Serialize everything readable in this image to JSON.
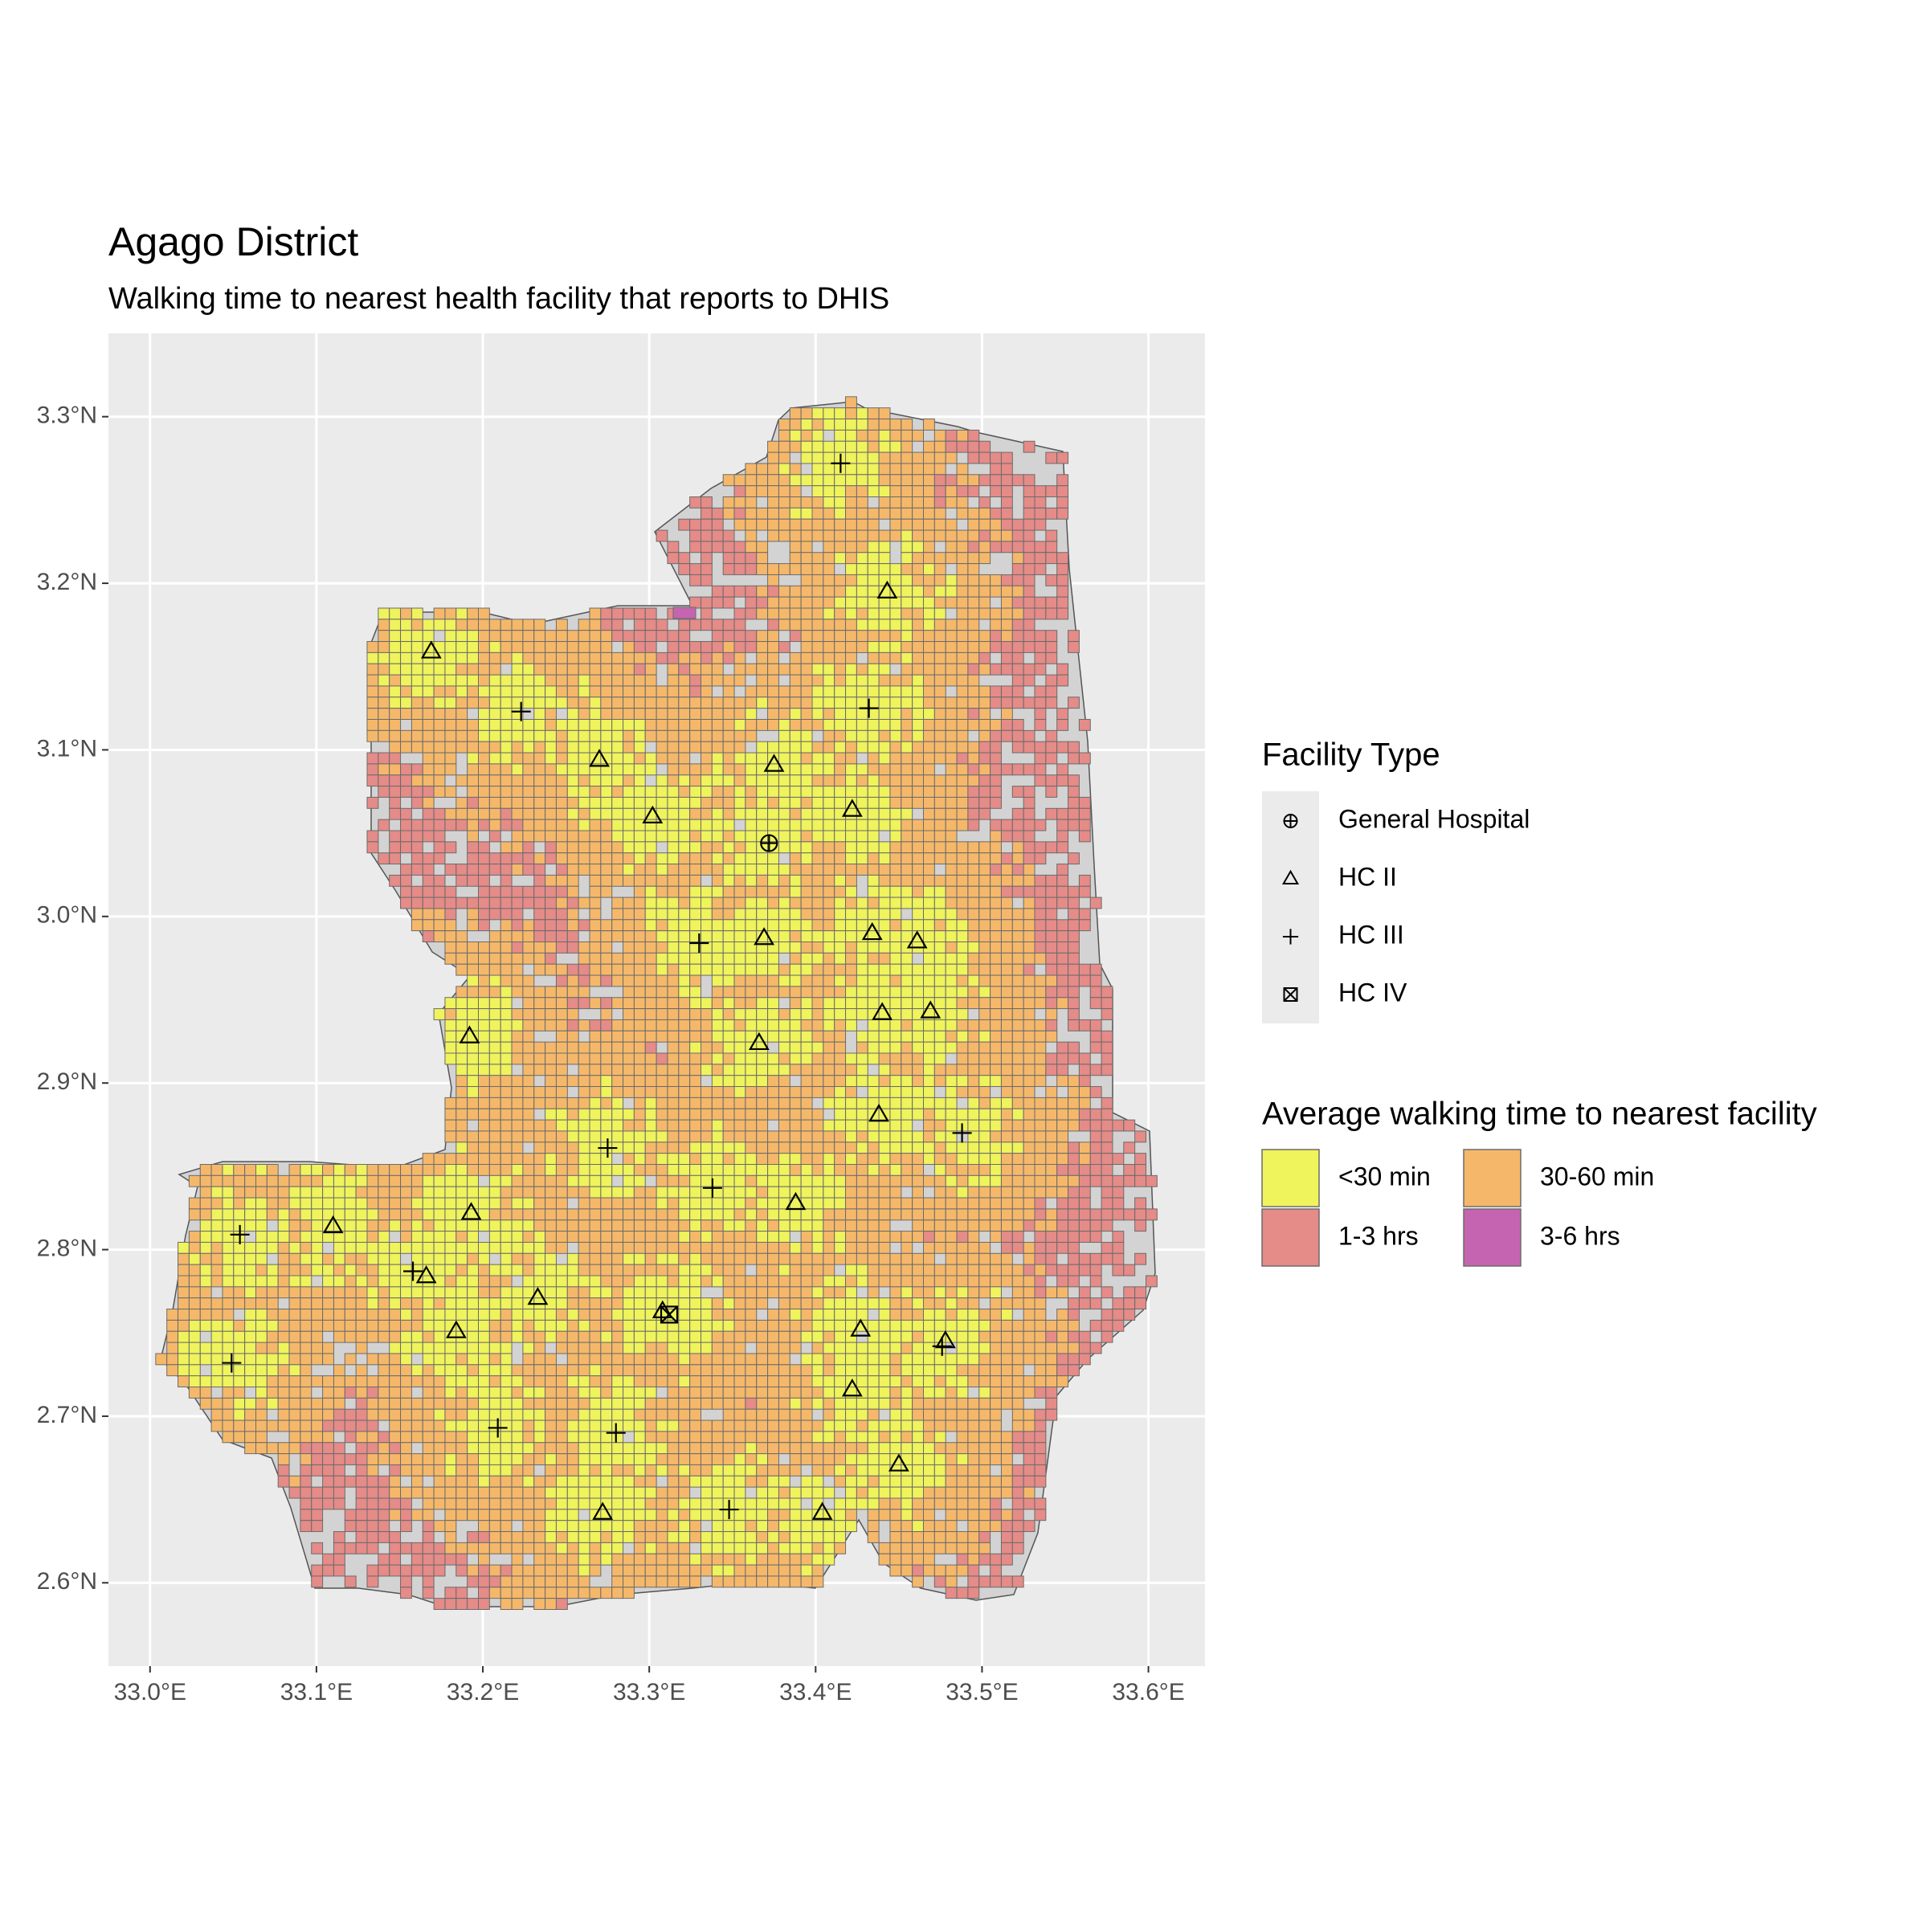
{
  "title": "Agago District",
  "subtitle": "Walking time to nearest health facility that reports to DHIS",
  "map": {
    "xlim": [
      32.975,
      33.634
    ],
    "ylim": [
      2.55,
      3.35
    ],
    "xticks": [
      {
        "value": 33.0,
        "label": "33.0°E"
      },
      {
        "value": 33.1,
        "label": "33.1°E"
      },
      {
        "value": 33.2,
        "label": "33.2°E"
      },
      {
        "value": 33.3,
        "label": "33.3°E"
      },
      {
        "value": 33.4,
        "label": "33.4°E"
      },
      {
        "value": 33.5,
        "label": "33.5°E"
      },
      {
        "value": 33.6,
        "label": "33.6°E"
      }
    ],
    "yticks": [
      {
        "value": 2.6,
        "label": "2.6°N"
      },
      {
        "value": 2.7,
        "label": "2.7°N"
      },
      {
        "value": 2.8,
        "label": "2.8°N"
      },
      {
        "value": 2.9,
        "label": "2.9°N"
      },
      {
        "value": 3.0,
        "label": "3.0°N"
      },
      {
        "value": 3.1,
        "label": "3.1°N"
      },
      {
        "value": 3.2,
        "label": "3.2°N"
      },
      {
        "value": 3.3,
        "label": "3.3°N"
      }
    ]
  },
  "facility_legend": {
    "title": "Facility Type",
    "items": [
      "General Hospital",
      "HC II",
      "HC III",
      "HC IV"
    ]
  },
  "time_legend": {
    "title": "Average walking time to nearest facility",
    "items": [
      {
        "name": "<30 min",
        "color": "#eff35c"
      },
      {
        "name": "30-60 min",
        "color": "#f5b86a"
      },
      {
        "name": "1-3 hrs",
        "color": "#e58b88"
      },
      {
        "name": "3-6 hrs",
        "color": "#c564b0"
      }
    ]
  },
  "facilities": [
    {
      "type": "General Hospital",
      "lon": 33.372,
      "lat": 3.044
    },
    {
      "type": "HC IV",
      "lon": 33.312,
      "lat": 2.761
    },
    {
      "type": "HC III",
      "lon": 33.415,
      "lat": 3.272
    },
    {
      "type": "HC III",
      "lon": 33.223,
      "lat": 3.123
    },
    {
      "type": "HC III",
      "lon": 33.432,
      "lat": 3.125
    },
    {
      "type": "HC III",
      "lon": 33.33,
      "lat": 2.984
    },
    {
      "type": "HC III",
      "lon": 33.275,
      "lat": 2.861
    },
    {
      "type": "HC III",
      "lon": 33.338,
      "lat": 2.837
    },
    {
      "type": "HC III",
      "lon": 33.488,
      "lat": 2.87
    },
    {
      "type": "HC III",
      "lon": 33.054,
      "lat": 2.809
    },
    {
      "type": "HC III",
      "lon": 33.158,
      "lat": 2.787
    },
    {
      "type": "HC III",
      "lon": 33.049,
      "lat": 2.732
    },
    {
      "type": "HC III",
      "lon": 33.209,
      "lat": 2.693
    },
    {
      "type": "HC III",
      "lon": 33.28,
      "lat": 2.69
    },
    {
      "type": "HC III",
      "lon": 33.348,
      "lat": 2.644
    },
    {
      "type": "HC III",
      "lon": 33.476,
      "lat": 2.742
    },
    {
      "type": "HC II",
      "lon": 33.443,
      "lat": 3.195
    },
    {
      "type": "HC II",
      "lon": 33.169,
      "lat": 3.159
    },
    {
      "type": "HC II",
      "lon": 33.27,
      "lat": 3.094
    },
    {
      "type": "HC II",
      "lon": 33.375,
      "lat": 3.091
    },
    {
      "type": "HC II",
      "lon": 33.302,
      "lat": 3.06
    },
    {
      "type": "HC II",
      "lon": 33.422,
      "lat": 3.064
    },
    {
      "type": "HC II",
      "lon": 33.369,
      "lat": 2.987
    },
    {
      "type": "HC II",
      "lon": 33.434,
      "lat": 2.99
    },
    {
      "type": "HC II",
      "lon": 33.461,
      "lat": 2.985
    },
    {
      "type": "HC II",
      "lon": 33.192,
      "lat": 2.928
    },
    {
      "type": "HC II",
      "lon": 33.366,
      "lat": 2.924
    },
    {
      "type": "HC II",
      "lon": 33.44,
      "lat": 2.942
    },
    {
      "type": "HC II",
      "lon": 33.469,
      "lat": 2.943
    },
    {
      "type": "HC II",
      "lon": 33.438,
      "lat": 2.881
    },
    {
      "type": "HC II",
      "lon": 33.388,
      "lat": 2.828
    },
    {
      "type": "HC II",
      "lon": 33.193,
      "lat": 2.822
    },
    {
      "type": "HC II",
      "lon": 33.11,
      "lat": 2.814
    },
    {
      "type": "HC II",
      "lon": 33.166,
      "lat": 2.784
    },
    {
      "type": "HC II",
      "lon": 33.233,
      "lat": 2.771
    },
    {
      "type": "HC II",
      "lon": 33.184,
      "lat": 2.751
    },
    {
      "type": "HC II",
      "lon": 33.308,
      "lat": 2.763
    },
    {
      "type": "HC II",
      "lon": 33.427,
      "lat": 2.752
    },
    {
      "type": "HC II",
      "lon": 33.478,
      "lat": 2.745
    },
    {
      "type": "HC II",
      "lon": 33.422,
      "lat": 2.716
    },
    {
      "type": "HC II",
      "lon": 33.45,
      "lat": 2.671
    },
    {
      "type": "HC II",
      "lon": 33.272,
      "lat": 2.642
    },
    {
      "type": "HC II",
      "lon": 33.404,
      "lat": 2.642
    }
  ]
}
